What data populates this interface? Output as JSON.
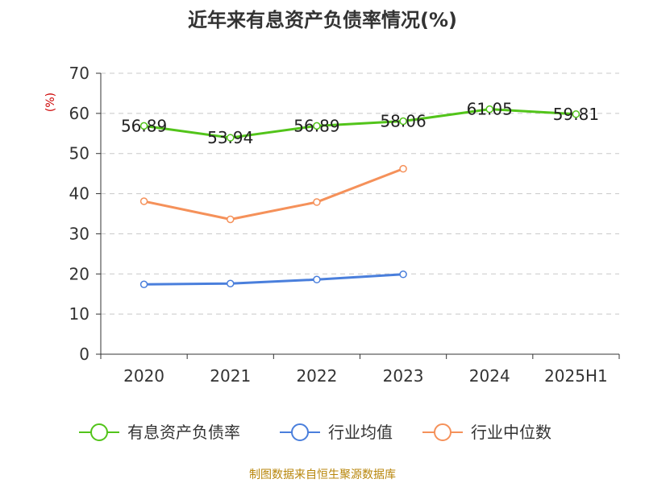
{
  "chart_data": {
    "type": "line",
    "title": "近年来有息资产负债率情况(%)",
    "ylabel": "(%)",
    "ylim": [
      0,
      70
    ],
    "yticks": [
      0,
      10,
      20,
      30,
      40,
      50,
      60,
      70
    ],
    "categories": [
      "2020",
      "2021",
      "2022",
      "2023",
      "2024",
      "2025H1"
    ],
    "grid": true,
    "legend_position": "bottom",
    "series": [
      {
        "name": "有息资产负债率",
        "color": "#52c41a",
        "values": [
          56.89,
          53.94,
          56.89,
          58.06,
          61.05,
          59.81
        ],
        "labels": [
          "56.89",
          "53.94",
          "56.89",
          "58.06",
          "61.05",
          "59.81"
        ]
      },
      {
        "name": "行业均值",
        "color": "#4a7fdc",
        "values": [
          17.4,
          17.6,
          18.6,
          19.9,
          null,
          null
        ]
      },
      {
        "name": "行业中位数",
        "color": "#f5915a",
        "values": [
          38.1,
          33.6,
          37.9,
          46.2,
          null,
          null
        ]
      }
    ]
  },
  "source": "制图数据来自恒生聚源数据库"
}
